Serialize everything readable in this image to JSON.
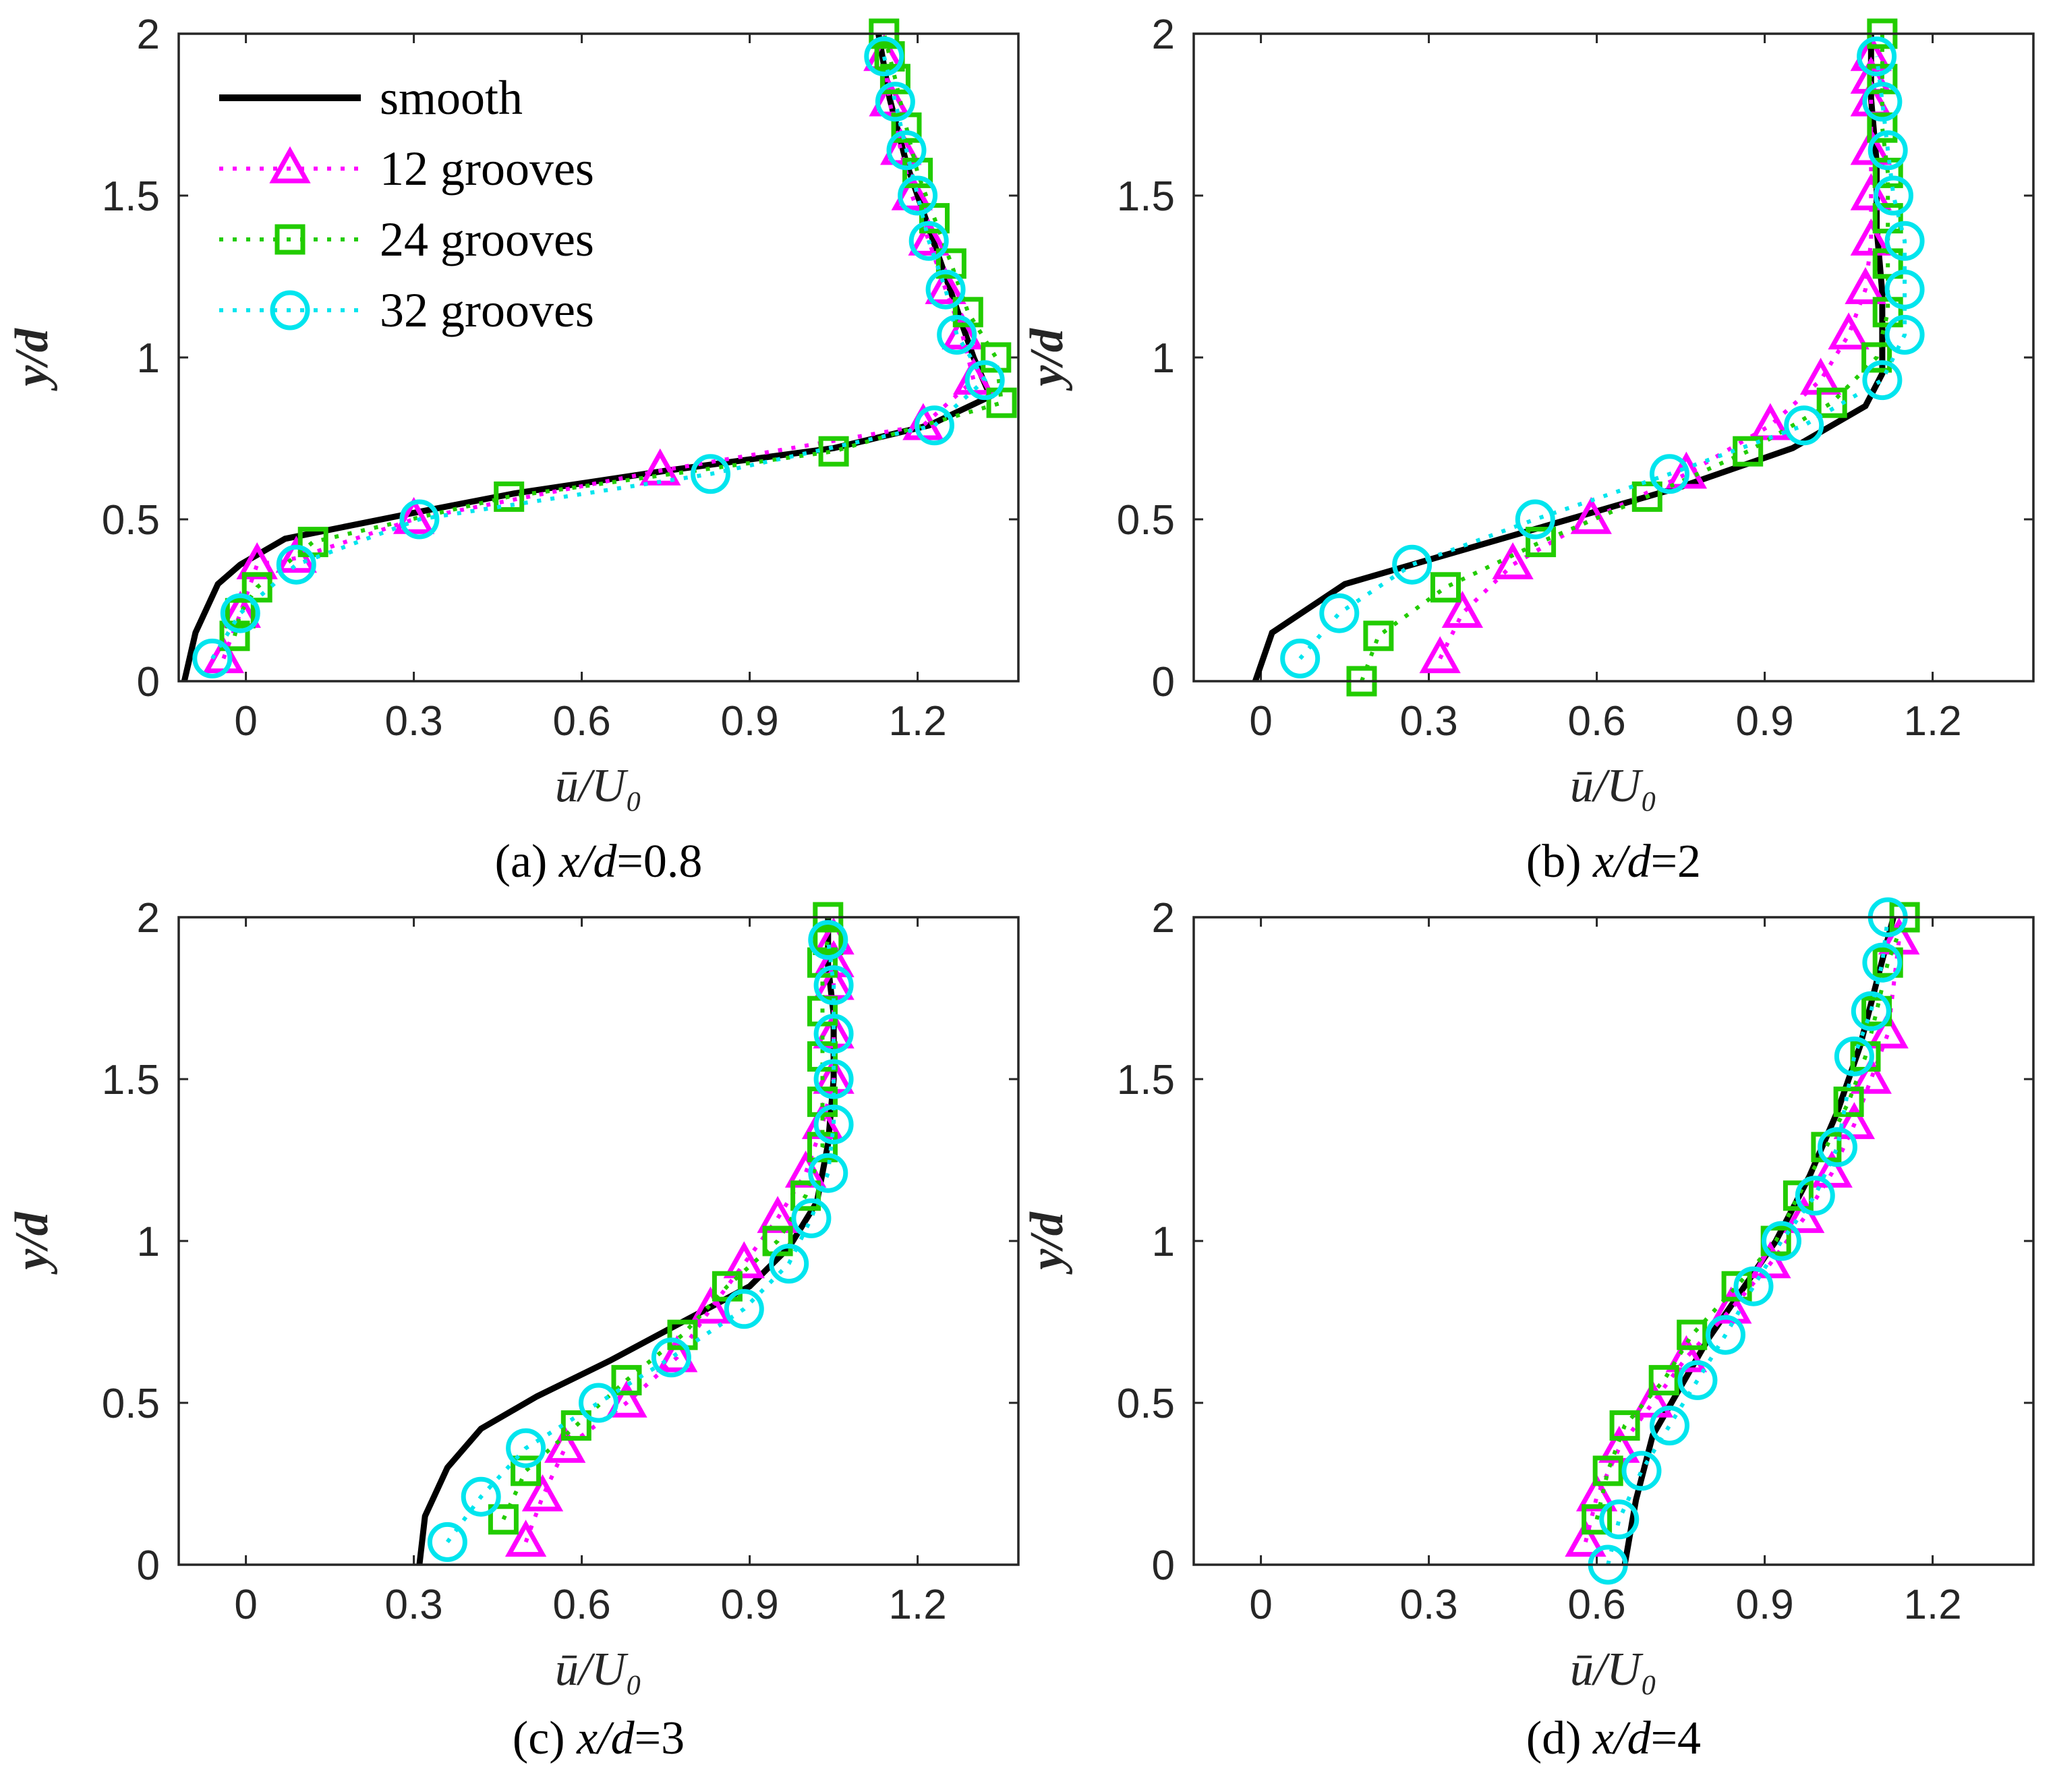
{
  "chart_data": [
    {
      "type": "line",
      "title": "(a) x/d=0.8",
      "caption_prefix": "(a) ",
      "caption_var": "x/d",
      "caption_value": "=0.8",
      "xlabel": "ū/U₀",
      "ylabel": "y/d",
      "xlim": [
        -0.12,
        1.38
      ],
      "ylim": [
        0,
        2
      ],
      "xticks": [
        0,
        0.3,
        0.6,
        0.9,
        1.2
      ],
      "xtick_labels": [
        "0",
        "0.3",
        "0.6",
        "0.9",
        "1.2"
      ],
      "yticks": [
        0,
        0.5,
        1,
        1.5,
        2
      ],
      "ytick_labels": [
        "0",
        "0.5",
        "1",
        "1.5",
        "2"
      ],
      "legend": {
        "position": "top-left",
        "entries": [
          "smooth",
          "12 grooves",
          "24 grooves",
          "32 grooves"
        ]
      },
      "series": [
        {
          "name": "smooth",
          "color": "#000000",
          "marker": "none",
          "x": [
            -0.11,
            -0.09,
            -0.05,
            -0.01,
            0.07,
            0.3,
            0.48,
            0.75,
            1.05,
            1.22,
            1.33,
            1.3,
            1.26,
            1.22,
            1.18,
            1.15,
            1.13
          ],
          "y": [
            0,
            0.15,
            0.3,
            0.36,
            0.44,
            0.52,
            0.58,
            0.65,
            0.72,
            0.79,
            0.88,
            1.0,
            1.2,
            1.4,
            1.6,
            1.8,
            2.0
          ]
        },
        {
          "name": "12 grooves",
          "color": "#ff00ff",
          "marker": "triangle",
          "x": [
            -0.04,
            -0.01,
            0.02,
            0.09,
            0.3,
            0.74,
            1.21,
            1.3,
            1.28,
            1.25,
            1.22,
            1.19,
            1.17,
            1.15,
            1.14
          ],
          "y": [
            0.07,
            0.21,
            0.36,
            0.38,
            0.5,
            0.65,
            0.79,
            0.93,
            1.07,
            1.21,
            1.36,
            1.5,
            1.64,
            1.79,
            1.93
          ]
        },
        {
          "name": "24 grooves",
          "color": "#22cc00",
          "marker": "square",
          "x": [
            -0.02,
            -0.01,
            0.02,
            0.12,
            0.47,
            1.05,
            1.35,
            1.34,
            1.29,
            1.26,
            1.23,
            1.2,
            1.18,
            1.16,
            1.15,
            1.14
          ],
          "y": [
            0.14,
            0.21,
            0.29,
            0.43,
            0.57,
            0.71,
            0.86,
            1.0,
            1.14,
            1.29,
            1.43,
            1.57,
            1.71,
            1.86,
            1.93,
            2.0
          ]
        },
        {
          "name": "32 grooves",
          "color": "#00e5ee",
          "marker": "circle",
          "x": [
            -0.06,
            -0.01,
            0.09,
            0.31,
            0.83,
            1.23,
            1.32,
            1.27,
            1.25,
            1.22,
            1.2,
            1.18,
            1.16,
            1.14
          ],
          "y": [
            0.07,
            0.21,
            0.36,
            0.5,
            0.64,
            0.79,
            0.93,
            1.07,
            1.21,
            1.36,
            1.5,
            1.64,
            1.79,
            1.93
          ]
        }
      ]
    },
    {
      "type": "line",
      "title": "(b) x/d=2",
      "caption_prefix": "(b) ",
      "caption_var": "x/d",
      "caption_value": "=2",
      "xlabel": "ū/U₀",
      "ylabel": "y/d",
      "xlim": [
        -0.12,
        1.38
      ],
      "ylim": [
        0,
        2
      ],
      "xticks": [
        0,
        0.3,
        0.6,
        0.9,
        1.2
      ],
      "xtick_labels": [
        "0",
        "0.3",
        "0.6",
        "0.9",
        "1.2"
      ],
      "yticks": [
        0,
        0.5,
        1,
        1.5,
        2
      ],
      "ytick_labels": [
        "0",
        "0.5",
        "1",
        "1.5",
        "2"
      ],
      "series": [
        {
          "name": "smooth",
          "color": "#000000",
          "marker": "none",
          "x": [
            -0.01,
            0.02,
            0.15,
            0.35,
            0.55,
            0.75,
            0.95,
            1.08,
            1.11,
            1.11,
            1.1,
            1.1,
            1.09,
            1.09
          ],
          "y": [
            0,
            0.15,
            0.3,
            0.4,
            0.5,
            0.6,
            0.72,
            0.85,
            0.95,
            1.2,
            1.4,
            1.6,
            1.8,
            2.0
          ]
        },
        {
          "name": "12 grooves",
          "color": "#ff00ff",
          "marker": "triangle",
          "x": [
            0.32,
            0.36,
            0.45,
            0.59,
            0.76,
            0.91,
            1.0,
            1.05,
            1.08,
            1.09,
            1.09,
            1.09,
            1.09,
            1.09,
            1.09
          ],
          "y": [
            0.07,
            0.21,
            0.36,
            0.5,
            0.64,
            0.79,
            0.93,
            1.07,
            1.21,
            1.36,
            1.5,
            1.64,
            1.79,
            1.86,
            1.93
          ]
        },
        {
          "name": "24 grooves",
          "color": "#22cc00",
          "marker": "square",
          "x": [
            0.18,
            0.21,
            0.33,
            0.5,
            0.69,
            0.87,
            1.02,
            1.1,
            1.12,
            1.12,
            1.12,
            1.12,
            1.11,
            1.11,
            1.11
          ],
          "y": [
            0,
            0.14,
            0.29,
            0.43,
            0.57,
            0.71,
            0.86,
            1.0,
            1.14,
            1.29,
            1.43,
            1.57,
            1.71,
            1.86,
            2.0
          ]
        },
        {
          "name": "32 grooves",
          "color": "#00e5ee",
          "marker": "circle",
          "x": [
            0.07,
            0.14,
            0.27,
            0.49,
            0.73,
            0.97,
            1.11,
            1.15,
            1.15,
            1.15,
            1.13,
            1.12,
            1.11,
            1.1
          ],
          "y": [
            0.07,
            0.21,
            0.36,
            0.5,
            0.64,
            0.79,
            0.93,
            1.07,
            1.21,
            1.36,
            1.5,
            1.64,
            1.79,
            1.93
          ]
        }
      ]
    },
    {
      "type": "line",
      "title": "(c) x/d=3",
      "caption_prefix": "(c) ",
      "caption_var": "x/d",
      "caption_value": "=3",
      "xlabel": "ū/U₀",
      "ylabel": "y/d",
      "xlim": [
        -0.12,
        1.38
      ],
      "ylim": [
        0,
        2
      ],
      "xticks": [
        0,
        0.3,
        0.6,
        0.9,
        1.2
      ],
      "xtick_labels": [
        "0",
        "0.3",
        "0.6",
        "0.9",
        "1.2"
      ],
      "yticks": [
        0,
        0.5,
        1,
        1.5,
        2
      ],
      "ytick_labels": [
        "0",
        "0.5",
        "1",
        "1.5",
        "2"
      ],
      "series": [
        {
          "name": "smooth",
          "color": "#000000",
          "marker": "none",
          "x": [
            0.31,
            0.32,
            0.36,
            0.42,
            0.52,
            0.65,
            0.78,
            0.9,
            0.97,
            1.02,
            1.04,
            1.05,
            1.05,
            1.04,
            1.04
          ],
          "y": [
            0,
            0.15,
            0.3,
            0.42,
            0.52,
            0.63,
            0.75,
            0.86,
            0.98,
            1.12,
            1.3,
            1.5,
            1.7,
            1.85,
            2.0
          ]
        },
        {
          "name": "12 grooves",
          "color": "#ff00ff",
          "marker": "triangle",
          "x": [
            0.5,
            0.53,
            0.57,
            0.68,
            0.77,
            0.83,
            0.89,
            0.95,
            1.0,
            1.03,
            1.05,
            1.05,
            1.05,
            1.05,
            1.05
          ],
          "y": [
            0.07,
            0.21,
            0.36,
            0.5,
            0.64,
            0.79,
            0.93,
            1.07,
            1.21,
            1.36,
            1.5,
            1.64,
            1.79,
            1.86,
            1.93
          ]
        },
        {
          "name": "24 grooves",
          "color": "#22cc00",
          "marker": "square",
          "x": [
            0.46,
            0.5,
            0.59,
            0.68,
            0.78,
            0.86,
            0.95,
            1.0,
            1.03,
            1.03,
            1.03,
            1.03,
            1.03,
            1.04,
            1.04
          ],
          "y": [
            0.14,
            0.29,
            0.43,
            0.57,
            0.71,
            0.86,
            1.0,
            1.14,
            1.29,
            1.43,
            1.57,
            1.71,
            1.86,
            1.93,
            2.0
          ]
        },
        {
          "name": "32 grooves",
          "color": "#00e5ee",
          "marker": "circle",
          "x": [
            0.36,
            0.42,
            0.5,
            0.63,
            0.76,
            0.89,
            0.97,
            1.01,
            1.04,
            1.05,
            1.05,
            1.05,
            1.05,
            1.04
          ],
          "y": [
            0.07,
            0.21,
            0.36,
            0.5,
            0.64,
            0.79,
            0.93,
            1.07,
            1.21,
            1.36,
            1.5,
            1.64,
            1.79,
            1.93
          ]
        }
      ]
    },
    {
      "type": "line",
      "title": "(d) x/d=4",
      "caption_prefix": "(d) ",
      "caption_var": "x/d",
      "caption_value": "=4",
      "xlabel": "ū/U₀",
      "ylabel": "y/d",
      "xlim": [
        -0.12,
        1.38
      ],
      "ylim": [
        0,
        2
      ],
      "xticks": [
        0,
        0.3,
        0.6,
        0.9,
        1.2
      ],
      "xtick_labels": [
        "0",
        "0.3",
        "0.6",
        "0.9",
        "1.2"
      ],
      "yticks": [
        0,
        0.5,
        1,
        1.5,
        2
      ],
      "ytick_labels": [
        "0",
        "0.5",
        "1",
        "1.5",
        "2"
      ],
      "series": [
        {
          "name": "smooth",
          "color": "#000000",
          "marker": "none",
          "x": [
            0.65,
            0.67,
            0.7,
            0.75,
            0.8,
            0.86,
            0.92,
            0.98,
            1.03,
            1.07,
            1.1,
            1.13
          ],
          "y": [
            0,
            0.2,
            0.4,
            0.55,
            0.7,
            0.85,
            1.0,
            1.2,
            1.4,
            1.6,
            1.8,
            2.0
          ]
        },
        {
          "name": "12 grooves",
          "color": "#ff00ff",
          "marker": "triangle",
          "x": [
            0.58,
            0.6,
            0.64,
            0.7,
            0.76,
            0.84,
            0.91,
            0.97,
            1.02,
            1.06,
            1.09,
            1.12,
            1.14
          ],
          "y": [
            0.07,
            0.21,
            0.36,
            0.5,
            0.64,
            0.79,
            0.93,
            1.07,
            1.21,
            1.36,
            1.5,
            1.64,
            1.93
          ]
        },
        {
          "name": "24 grooves",
          "color": "#22cc00",
          "marker": "square",
          "x": [
            0.6,
            0.62,
            0.65,
            0.72,
            0.77,
            0.85,
            0.92,
            0.96,
            1.01,
            1.05,
            1.08,
            1.1,
            1.12,
            1.15
          ],
          "y": [
            0.14,
            0.29,
            0.43,
            0.57,
            0.71,
            0.86,
            1.0,
            1.14,
            1.29,
            1.43,
            1.57,
            1.71,
            1.86,
            2.0
          ]
        },
        {
          "name": "32 grooves",
          "color": "#00e5ee",
          "marker": "circle",
          "x": [
            0.62,
            0.64,
            0.68,
            0.73,
            0.78,
            0.83,
            0.88,
            0.93,
            0.99,
            1.03,
            1.06,
            1.09,
            1.11,
            1.12
          ],
          "y": [
            0.0,
            0.14,
            0.29,
            0.43,
            0.57,
            0.71,
            0.86,
            1.0,
            1.14,
            1.29,
            1.57,
            1.71,
            1.86,
            2.0
          ]
        }
      ]
    }
  ]
}
